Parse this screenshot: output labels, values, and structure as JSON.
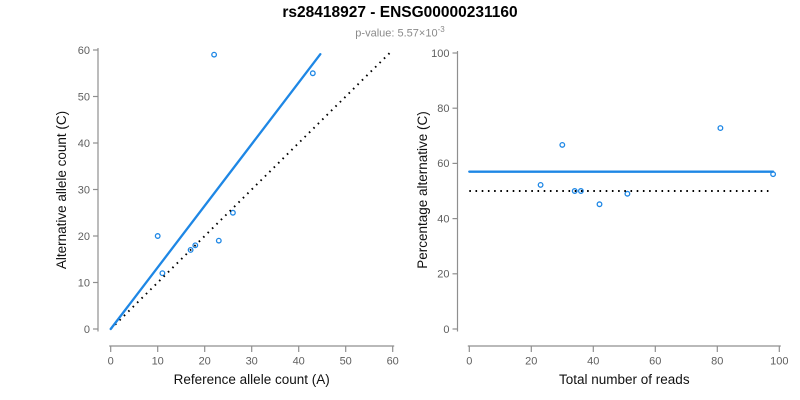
{
  "header": {
    "title": "rs28418927 - ENSG00000231160",
    "subtitle_label": "p-value: ",
    "subtitle_value": "5.57×10",
    "subtitle_exponent": "-3"
  },
  "colors": {
    "accent_blue": "#1E87E5",
    "identity_black": "#000000",
    "axis_gray": "#8F8F8F",
    "tick_label_gray": "#5F5F5F",
    "axis_title_color": "#111111",
    "subtitle_gray": "#8A8A8A"
  },
  "chart_data": [
    {
      "type": "scatter",
      "name": "ref-vs-alt",
      "xlabel": "Reference allele count (A)",
      "ylabel": "Alternative allele count (C)",
      "xlim": [
        0,
        60
      ],
      "ylim": [
        0,
        60
      ],
      "xticks": [
        0,
        10,
        20,
        30,
        40,
        50,
        60
      ],
      "yticks": [
        0,
        10,
        20,
        30,
        40,
        50,
        60
      ],
      "grid": false,
      "legend": "none",
      "points": [
        [
          10,
          20
        ],
        [
          11,
          12
        ],
        [
          17,
          17
        ],
        [
          18,
          18
        ],
        [
          22,
          59
        ],
        [
          23,
          19
        ],
        [
          26,
          25
        ],
        [
          43,
          55
        ]
      ],
      "lines": [
        {
          "style": "identity",
          "x1": 0,
          "y1": 0,
          "x2": 59.5,
          "y2": 59.5
        },
        {
          "style": "fit",
          "x1": 0,
          "y1": 0,
          "x2": 44.6,
          "y2": 59.1
        }
      ]
    },
    {
      "type": "scatter",
      "name": "total-vs-percentage",
      "xlabel": "Total number of reads",
      "ylabel": "Percentage alternative (C)",
      "xlim": [
        0,
        100
      ],
      "ylim": [
        0,
        100
      ],
      "xticks": [
        0,
        20,
        40,
        60,
        80,
        100
      ],
      "yticks": [
        0,
        20,
        40,
        60,
        80,
        100
      ],
      "grid": false,
      "legend": "none",
      "points": [
        [
          23,
          52.2
        ],
        [
          30,
          66.7
        ],
        [
          34,
          50
        ],
        [
          36,
          50
        ],
        [
          42,
          45.2
        ],
        [
          51,
          49.0
        ],
        [
          81,
          72.8
        ],
        [
          98,
          56.1
        ]
      ],
      "lines": [
        {
          "style": "identity",
          "x1": 0,
          "y1": 50,
          "x2": 96.5,
          "y2": 50
        },
        {
          "style": "fit",
          "x1": 0,
          "y1": 57,
          "x2": 98,
          "y2": 57
        }
      ]
    }
  ]
}
